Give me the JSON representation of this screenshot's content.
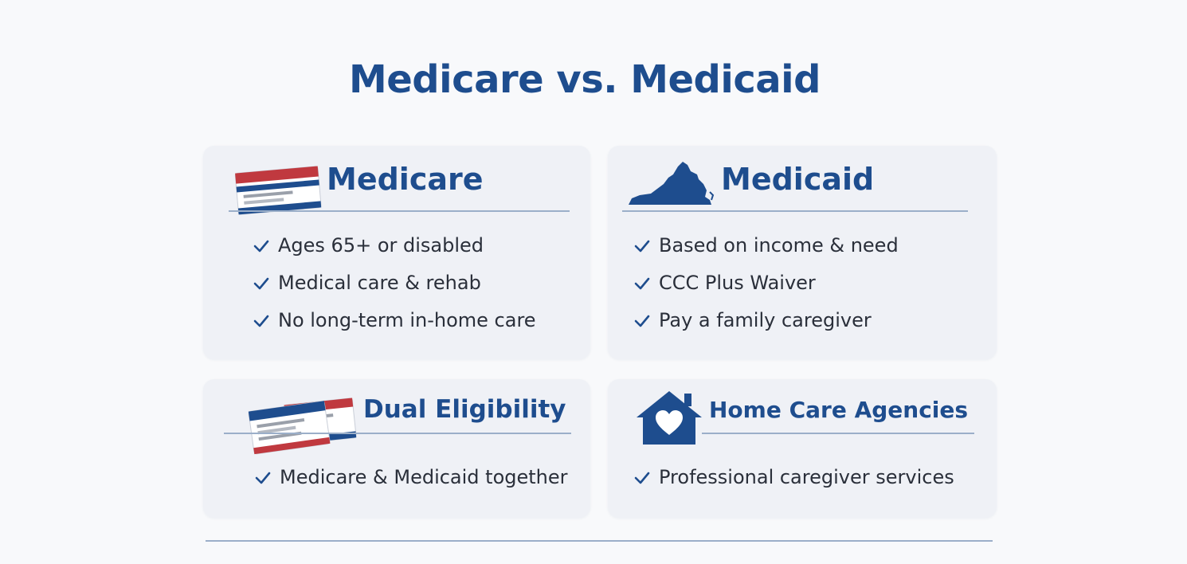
{
  "page": {
    "title": "Medicare vs. Medicaid"
  },
  "colors": {
    "brand_blue": "#1e4d8e",
    "accent_red": "#c0393f",
    "card_bg": "#eff1f6",
    "rule": "#9bafc9"
  },
  "cards": [
    {
      "title": "Medicare",
      "icon": "medicare-card-icon",
      "items": [
        "Ages 65+ or disabled",
        "Medical care & rehab",
        "No long-term in-home care"
      ]
    },
    {
      "title": "Medicaid",
      "icon": "virginia-state-icon",
      "items": [
        "Based on income & need",
        "CCC Plus Waiver",
        "Pay a family caregiver"
      ]
    },
    {
      "title": "Dual Eligibility",
      "icon": "two-cards-icon",
      "items": [
        "Medicare & Medicaid together"
      ]
    },
    {
      "title": "Home Care Agencies",
      "icon": "house-heart-icon",
      "items": [
        "Professional caregiver services"
      ]
    }
  ]
}
